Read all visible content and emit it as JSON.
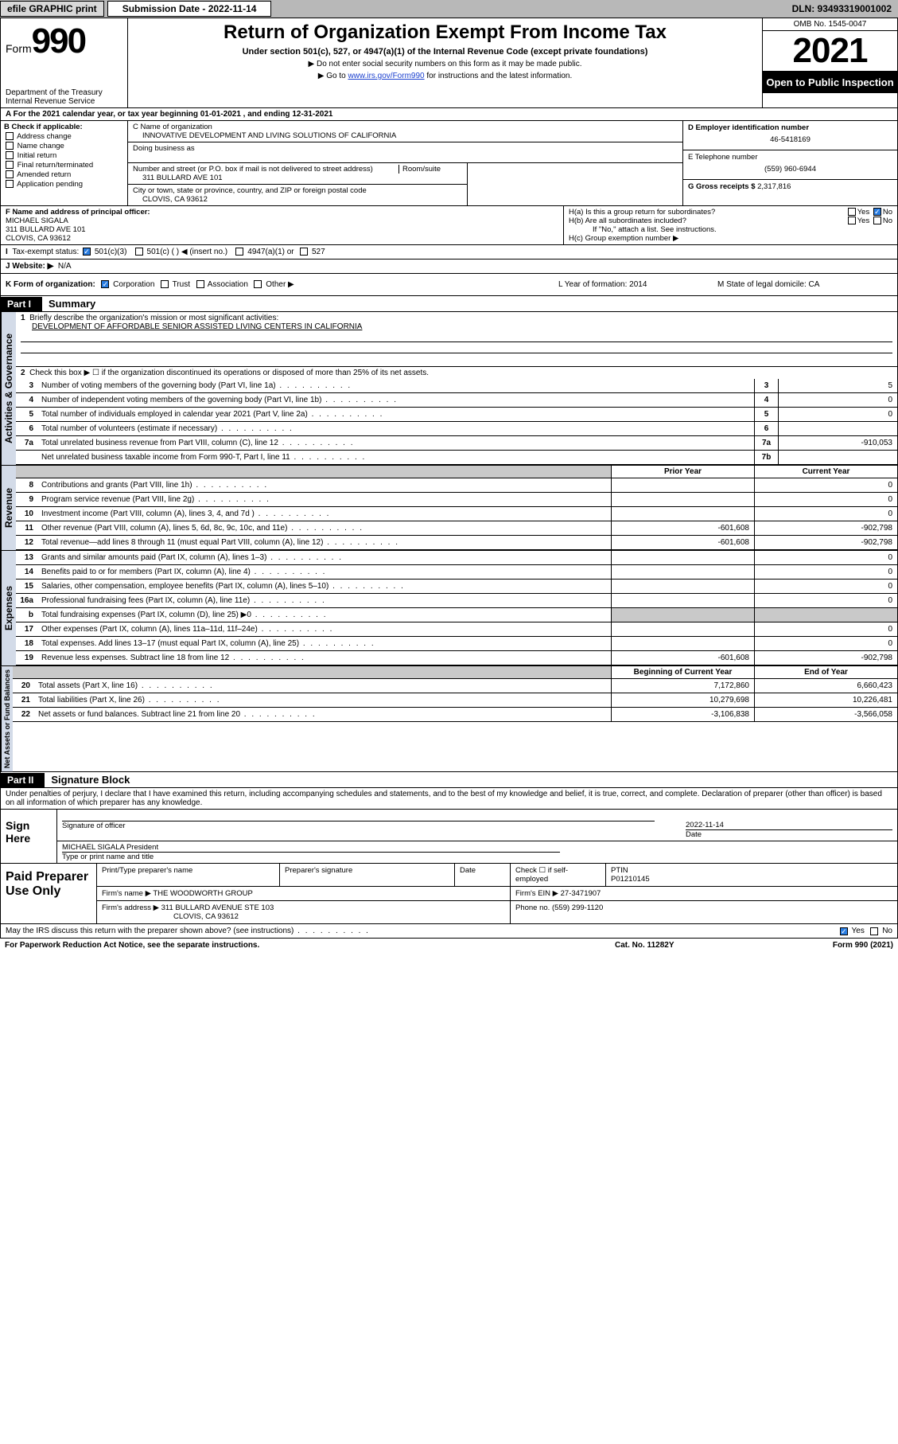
{
  "topbar": {
    "efile": "efile GRAPHIC print",
    "submission_label": "Submission Date - 2022-11-14",
    "dln": "DLN: 93493319001002"
  },
  "header": {
    "form_prefix": "Form",
    "form_num": "990",
    "dept": "Department of the Treasury",
    "irs": "Internal Revenue Service",
    "title": "Return of Organization Exempt From Income Tax",
    "subtitle": "Under section 501(c), 527, or 4947(a)(1) of the Internal Revenue Code (except private foundations)",
    "note1": "▶ Do not enter social security numbers on this form as it may be made public.",
    "note2_pre": "▶ Go to ",
    "note2_link": "www.irs.gov/Form990",
    "note2_post": " for instructions and the latest information.",
    "omb": "OMB No. 1545-0047",
    "year": "2021",
    "open": "Open to Public Inspection"
  },
  "rowA": "A For the 2021 calendar year, or tax year beginning 01-01-2021    , and ending 12-31-2021",
  "B": {
    "label": "B Check if applicable:",
    "opts": [
      "Address change",
      "Name change",
      "Initial return",
      "Final return/terminated",
      "Amended return",
      "Application pending"
    ]
  },
  "C": {
    "head": "C Name of organization",
    "name": "INNOVATIVE DEVELOPMENT AND LIVING SOLUTIONS OF CALIFORNIA",
    "dba_lbl": "Doing business as",
    "addr_lbl": "Number and street (or P.O. box if mail is not delivered to street address)",
    "room_lbl": "Room/suite",
    "addr": "311 BULLARD AVE 101",
    "city_lbl": "City or town, state or province, country, and ZIP or foreign postal code",
    "city": "CLOVIS, CA  93612"
  },
  "D": {
    "lbl": "D Employer identification number",
    "val": "46-5418169"
  },
  "E": {
    "lbl": "E Telephone number",
    "val": "(559) 960-6944"
  },
  "G": {
    "lbl": "G Gross receipts $",
    "val": "2,317,816"
  },
  "F": {
    "lbl": "F  Name and address of principal officer:",
    "name": "MICHAEL SIGALA",
    "addr1": "311 BULLARD AVE 101",
    "addr2": "CLOVIS, CA  93612"
  },
  "H": {
    "a": "H(a)  Is this a group return for subordinates?",
    "b": "H(b)  Are all subordinates included?",
    "note": "If \"No,\" attach a list. See instructions.",
    "c": "H(c)  Group exemption number ▶",
    "yes": "Yes",
    "no": "No"
  },
  "I": {
    "lbl": "Tax-exempt status:",
    "o1": "501(c)(3)",
    "o2": "501(c) (   ) ◀ (insert no.)",
    "o3": "4947(a)(1) or",
    "o4": "527"
  },
  "J": {
    "lbl": "J   Website: ▶",
    "val": "N/A"
  },
  "K": {
    "lbl": "K Form of organization:",
    "o1": "Corporation",
    "o2": "Trust",
    "o3": "Association",
    "o4": "Other ▶",
    "L": "L Year of formation: 2014",
    "M": "M State of legal domicile: CA"
  },
  "part1": {
    "hdr": "Part I",
    "title": "Summary",
    "l1": "Briefly describe the organization's mission or most significant activities:",
    "mission": "DEVELOPMENT OF AFFORDABLE SENIOR ASSISTED LIVING CENTERS IN CALIFORNIA",
    "l2": "Check this box ▶ ☐  if the organization discontinued its operations or disposed of more than 25% of its net assets.",
    "rows_gov": [
      {
        "n": "3",
        "t": "Number of voting members of the governing body (Part VI, line 1a)",
        "b": "3",
        "v": "5"
      },
      {
        "n": "4",
        "t": "Number of independent voting members of the governing body (Part VI, line 1b)",
        "b": "4",
        "v": "0"
      },
      {
        "n": "5",
        "t": "Total number of individuals employed in calendar year 2021 (Part V, line 2a)",
        "b": "5",
        "v": "0"
      },
      {
        "n": "6",
        "t": "Total number of volunteers (estimate if necessary)",
        "b": "6",
        "v": ""
      },
      {
        "n": "7a",
        "t": "Total unrelated business revenue from Part VIII, column (C), line 12",
        "b": "7a",
        "v": "-910,053"
      },
      {
        "n": "",
        "t": "Net unrelated business taxable income from Form 990-T, Part I, line 11",
        "b": "7b",
        "v": ""
      }
    ],
    "hdr_prior": "Prior Year",
    "hdr_curr": "Current Year",
    "rows_rev": [
      {
        "n": "8",
        "t": "Contributions and grants (Part VIII, line 1h)",
        "p": "",
        "c": "0"
      },
      {
        "n": "9",
        "t": "Program service revenue (Part VIII, line 2g)",
        "p": "",
        "c": "0"
      },
      {
        "n": "10",
        "t": "Investment income (Part VIII, column (A), lines 3, 4, and 7d )",
        "p": "",
        "c": "0"
      },
      {
        "n": "11",
        "t": "Other revenue (Part VIII, column (A), lines 5, 6d, 8c, 9c, 10c, and 11e)",
        "p": "-601,608",
        "c": "-902,798"
      },
      {
        "n": "12",
        "t": "Total revenue—add lines 8 through 11 (must equal Part VIII, column (A), line 12)",
        "p": "-601,608",
        "c": "-902,798"
      }
    ],
    "rows_exp": [
      {
        "n": "13",
        "t": "Grants and similar amounts paid (Part IX, column (A), lines 1–3)",
        "p": "",
        "c": "0"
      },
      {
        "n": "14",
        "t": "Benefits paid to or for members (Part IX, column (A), line 4)",
        "p": "",
        "c": "0"
      },
      {
        "n": "15",
        "t": "Salaries, other compensation, employee benefits (Part IX, column (A), lines 5–10)",
        "p": "",
        "c": "0"
      },
      {
        "n": "16a",
        "t": "Professional fundraising fees (Part IX, column (A), line 11e)",
        "p": "",
        "c": "0"
      },
      {
        "n": "b",
        "t": "Total fundraising expenses (Part IX, column (D), line 25) ▶0",
        "p": "grey",
        "c": "grey"
      },
      {
        "n": "17",
        "t": "Other expenses (Part IX, column (A), lines 11a–11d, 11f–24e)",
        "p": "",
        "c": "0"
      },
      {
        "n": "18",
        "t": "Total expenses. Add lines 13–17 (must equal Part IX, column (A), line 25)",
        "p": "",
        "c": "0"
      },
      {
        "n": "19",
        "t": "Revenue less expenses. Subtract line 18 from line 12",
        "p": "-601,608",
        "c": "-902,798"
      }
    ],
    "hdr_beg": "Beginning of Current Year",
    "hdr_end": "End of Year",
    "rows_net": [
      {
        "n": "20",
        "t": "Total assets (Part X, line 16)",
        "p": "7,172,860",
        "c": "6,660,423"
      },
      {
        "n": "21",
        "t": "Total liabilities (Part X, line 26)",
        "p": "10,279,698",
        "c": "10,226,481"
      },
      {
        "n": "22",
        "t": "Net assets or fund balances. Subtract line 21 from line 20",
        "p": "-3,106,838",
        "c": "-3,566,058"
      }
    ],
    "side_gov": "Activities & Governance",
    "side_rev": "Revenue",
    "side_exp": "Expenses",
    "side_net": "Net Assets or Fund Balances"
  },
  "part2": {
    "hdr": "Part II",
    "title": "Signature Block",
    "decl": "Under penalties of perjury, I declare that I have examined this return, including accompanying schedules and statements, and to the best of my knowledge and belief, it is true, correct, and complete. Declaration of preparer (other than officer) is based on all information of which preparer has any knowledge.",
    "sign_here": "Sign Here",
    "sig_officer": "Signature of officer",
    "sig_date_lbl": "Date",
    "sig_date": "2022-11-14",
    "sig_name": "MICHAEL SIGALA  President",
    "sig_name_lbl": "Type or print name and title",
    "paid": "Paid Preparer Use Only",
    "p_name_lbl": "Print/Type preparer's name",
    "p_sig_lbl": "Preparer's signature",
    "p_date_lbl": "Date",
    "p_check": "Check ☐ if self-employed",
    "ptin_lbl": "PTIN",
    "ptin": "P01210145",
    "firm_name_lbl": "Firm's name   ▶",
    "firm_name": "THE WOODWORTH GROUP",
    "firm_ein_lbl": "Firm's EIN ▶",
    "firm_ein": "27-3471907",
    "firm_addr_lbl": "Firm's address ▶",
    "firm_addr": "311 BULLARD AVENUE STE 103",
    "firm_city": "CLOVIS, CA  93612",
    "phone_lbl": "Phone no.",
    "phone": "(559) 299-1120",
    "discuss": "May the IRS discuss this return with the preparer shown above? (see instructions)"
  },
  "footer": {
    "l": "For Paperwork Reduction Act Notice, see the separate instructions.",
    "m": "Cat. No. 11282Y",
    "r": "Form 990 (2021)"
  },
  "colors": {
    "sidebar": "#d3dbe8",
    "grey": "#c9c9c9",
    "link": "#1a3fcf",
    "check": "#2a7de1"
  }
}
